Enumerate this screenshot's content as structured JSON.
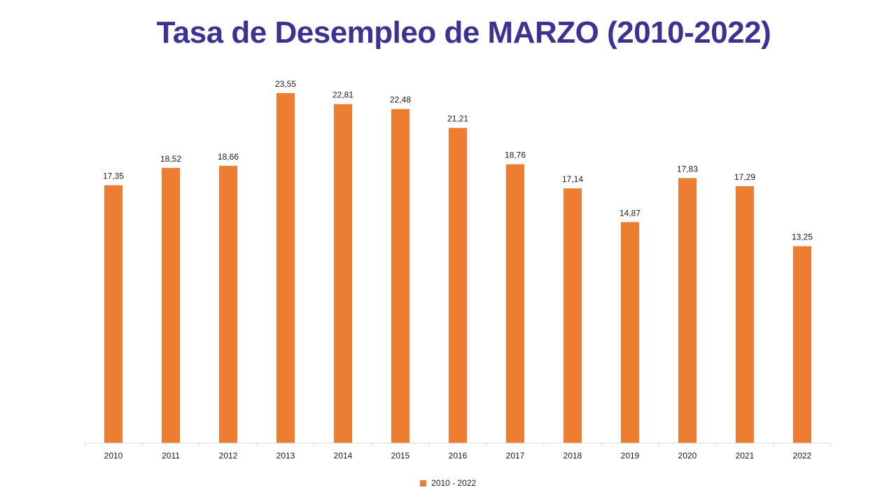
{
  "title": "Tasa de Desempleo de MARZO (2010-2022)",
  "colors": {
    "bar": "#ed7d31",
    "title": "#3b3391",
    "axis": "#d9d9d9"
  },
  "chart_data": {
    "type": "bar",
    "title": "Tasa de Desempleo de MARZO (2010-2022)",
    "categories": [
      "2010",
      "2011",
      "2012",
      "2013",
      "2014",
      "2015",
      "2016",
      "2017",
      "2018",
      "2019",
      "2020",
      "2021",
      "2022"
    ],
    "series": [
      {
        "name": "2010 - 2022",
        "values": [
          17.35,
          18.52,
          18.66,
          23.55,
          22.81,
          22.48,
          21.21,
          18.76,
          17.14,
          14.87,
          17.83,
          17.29,
          13.25
        ],
        "labels": [
          "17,35",
          "18,52",
          "18,66",
          "23,55",
          "22,81",
          "22,48",
          "21,21",
          "18,76",
          "17,14",
          "14,87",
          "17,83",
          "17,29",
          "13,25"
        ]
      }
    ],
    "ylim": [
      0,
      23.55
    ],
    "grid": false,
    "legend": "bottom-center"
  }
}
